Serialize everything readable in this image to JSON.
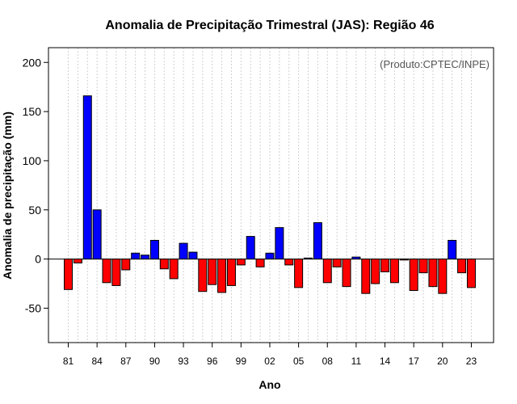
{
  "chart_data": {
    "type": "bar",
    "title": "Anomalia de Precipitação Trimestral (JAS): Região 46",
    "xlabel": "Ano",
    "ylabel": "Anomalia de precipitação (mm)",
    "source_note": "(Produto:CPTEC/INPE)",
    "ylim": [
      -85,
      215
    ],
    "yticks": [
      -50,
      0,
      50,
      100,
      150,
      200
    ],
    "ytick_labels": [
      "-50",
      "0",
      "50",
      "100",
      "150",
      "200"
    ],
    "xtick_years": [
      1981,
      1984,
      1987,
      1990,
      1993,
      1996,
      1999,
      2002,
      2005,
      2008,
      2011,
      2014,
      2017,
      2020,
      2023
    ],
    "xtick_labels": [
      "81",
      "84",
      "87",
      "90",
      "93",
      "96",
      "99",
      "02",
      "05",
      "08",
      "11",
      "14",
      "17",
      "20",
      "23"
    ],
    "grid": true,
    "positive_color": "#0000ff",
    "negative_color": "#ff0000",
    "categories": [
      "1981",
      "1982",
      "1983",
      "1984",
      "1985",
      "1986",
      "1987",
      "1988",
      "1989",
      "1990",
      "1991",
      "1992",
      "1993",
      "1994",
      "1995",
      "1996",
      "1997",
      "1998",
      "1999",
      "2000",
      "2001",
      "2002",
      "2003",
      "2004",
      "2005",
      "2006",
      "2007",
      "2008",
      "2009",
      "2010",
      "2011",
      "2012",
      "2013",
      "2014",
      "2015",
      "2016",
      "2017",
      "2018",
      "2019",
      "2020",
      "2021",
      "2022",
      "2023"
    ],
    "values": [
      -31,
      -4,
      166,
      50,
      -24,
      -27,
      -11,
      6,
      4,
      19,
      -10,
      -20,
      16,
      7,
      -33,
      -26,
      -34,
      -27,
      -6,
      23,
      -8,
      6,
      32,
      -6,
      -29,
      1,
      37,
      -24,
      -8,
      -28,
      2,
      -35,
      -25,
      -13,
      -24,
      -1,
      -32,
      -14,
      -28,
      -35,
      19,
      -14,
      -29
    ]
  }
}
